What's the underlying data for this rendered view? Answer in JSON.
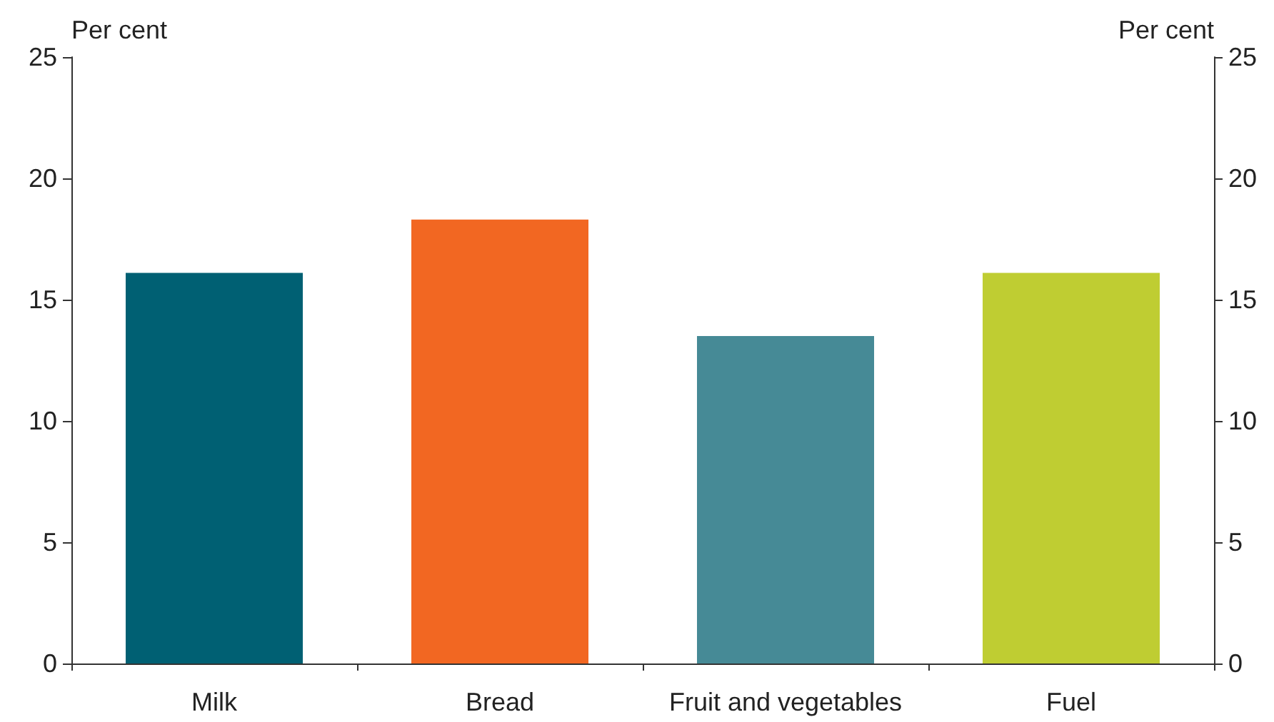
{
  "chart_data": {
    "type": "bar",
    "categories": [
      "Milk",
      "Bread",
      "Fruit and vegetables",
      "Fuel"
    ],
    "values": [
      16.1,
      18.3,
      13.5,
      16.1
    ],
    "colors": [
      "#006073",
      "#f26722",
      "#468a96",
      "#bfcd32"
    ],
    "ylabel": "Per cent",
    "y2label": "Per cent",
    "ylim": [
      0,
      25
    ],
    "yticks": [
      0,
      5,
      10,
      15,
      20,
      25
    ],
    "y2lim": [
      0,
      25
    ],
    "y2ticks": [
      0,
      5,
      10,
      15,
      20,
      25
    ],
    "grid": false
  }
}
